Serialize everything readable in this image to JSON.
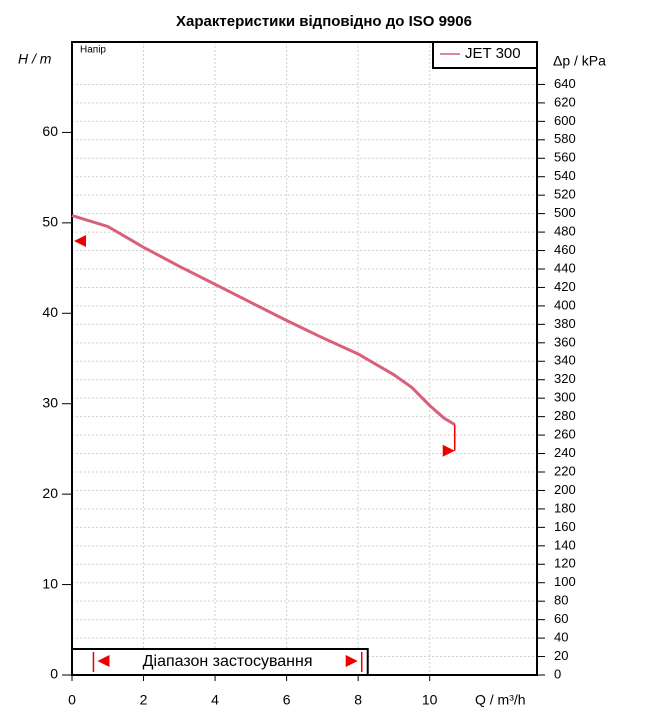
{
  "chart_data": {
    "type": "line",
    "title": "Характеристики відповідно до ISO 9906",
    "y_label": "H / m",
    "y2_label": "Δp / kPa",
    "x_label": "Q / m³/h",
    "corner_label": "Напір",
    "range_label": "Діапазон застосування",
    "range": [
      0.6,
      8.1
    ],
    "xlim": [
      0,
      13
    ],
    "xticks": [
      0,
      2,
      4,
      6,
      8,
      10
    ],
    "ylim": [
      0,
      70
    ],
    "yticks": [
      0,
      10,
      20,
      30,
      40,
      50,
      60
    ],
    "y2lim": [
      0,
      686
    ],
    "y2ticks": [
      0,
      20,
      40,
      60,
      80,
      100,
      120,
      140,
      160,
      180,
      200,
      220,
      240,
      260,
      280,
      300,
      320,
      340,
      360,
      380,
      400,
      420,
      440,
      460,
      480,
      500,
      520,
      540,
      560,
      580,
      600,
      620,
      640
    ],
    "grid": true,
    "legend": "top-right",
    "x": [
      0,
      1,
      2,
      3,
      4,
      5,
      6,
      7,
      8,
      9,
      9.5,
      10,
      10.4,
      10.7
    ],
    "series": [
      {
        "name": "JET 300",
        "color": "#d9607a",
        "values": [
          50.8,
          49.6,
          47.3,
          45.2,
          43.2,
          41.2,
          39.2,
          37.3,
          35.5,
          33.2,
          31.8,
          29.8,
          28.4,
          27.7
        ]
      }
    ],
    "markers": [
      {
        "x": 0,
        "y": 48
      },
      {
        "x": 10.7,
        "y": 24.8
      }
    ]
  }
}
